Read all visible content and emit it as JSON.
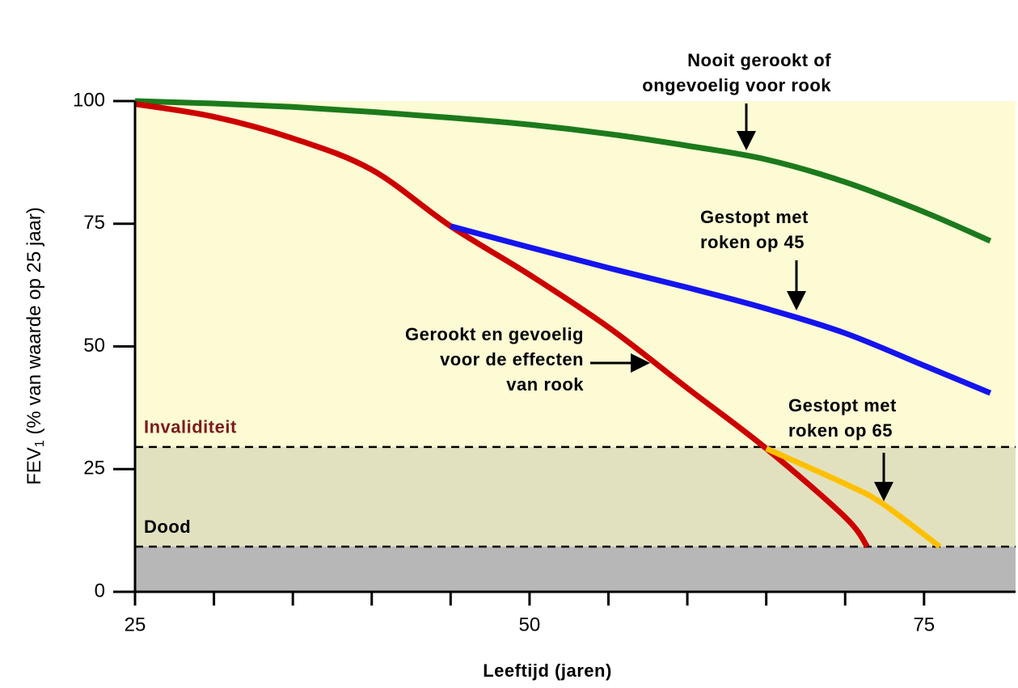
{
  "chart_data": {
    "type": "line",
    "x_label": "Leeftijd (jaren)",
    "y_label": {
      "main": "FEV",
      "subscript": "1",
      "rest": " (% van waarde op 25 jaar)"
    },
    "xlim": [
      25,
      80.8
    ],
    "ylim": [
      0,
      100
    ],
    "xticks": [
      25,
      50,
      75
    ],
    "xminor_ticks": [
      30,
      35,
      40,
      45,
      55,
      60,
      65,
      70
    ],
    "yticks": [
      0,
      25,
      50,
      75,
      100
    ],
    "background_colors": [
      "#fdfbd4",
      "#e2e1bf",
      "#b7b7b7"
    ],
    "thresholds": [
      {
        "label": "Invaliditeit",
        "value": 29.5,
        "color": "#7a1c1c"
      },
      {
        "label": "Dood",
        "value": 9.2,
        "color": "#000000"
      }
    ],
    "series": [
      {
        "name": "Nooit gerookt of ongevoelig voor rook",
        "color": "#1c7a1c",
        "x": [
          25,
          30,
          35,
          40,
          45,
          50,
          55,
          60,
          65,
          70,
          75,
          79.2
        ],
        "values": [
          100,
          99.5,
          98.8,
          97.8,
          96.6,
          95.2,
          93.3,
          90.9,
          88.1,
          83.5,
          77.4,
          71.5
        ]
      },
      {
        "name": "Gerookt en gevoelig voor de effecten van rook",
        "color": "#cc0000",
        "x": [
          25,
          30,
          35,
          40,
          45,
          50,
          55,
          60,
          65,
          70,
          71.4
        ],
        "values": [
          99.4,
          96.8,
          92.4,
          86,
          74.5,
          64.6,
          53.9,
          41.5,
          29.2,
          15.2,
          9.2
        ]
      },
      {
        "name": "Gestopt met roken op 45",
        "color": "#1414ee",
        "x": [
          45,
          50,
          55,
          60,
          65,
          70,
          75,
          79.2
        ],
        "values": [
          74.5,
          70.2,
          66,
          62,
          57.7,
          52.7,
          46.1,
          40.5
        ]
      },
      {
        "name": "Gestopt met roken op 65",
        "color": "#ffc000",
        "x": [
          65,
          70,
          72.3,
          76
        ],
        "values": [
          29.2,
          22,
          18.1,
          9.2
        ]
      }
    ],
    "annotations": [
      [
        "Nooit gerookt of",
        "ongevoelig voor rook"
      ],
      [
        "Gestopt met",
        "roken op 45"
      ],
      [
        "Gerookt en gevoelig",
        "voor de effecten",
        "van rook"
      ],
      [
        "Gestopt met",
        "roken op 65"
      ]
    ]
  }
}
